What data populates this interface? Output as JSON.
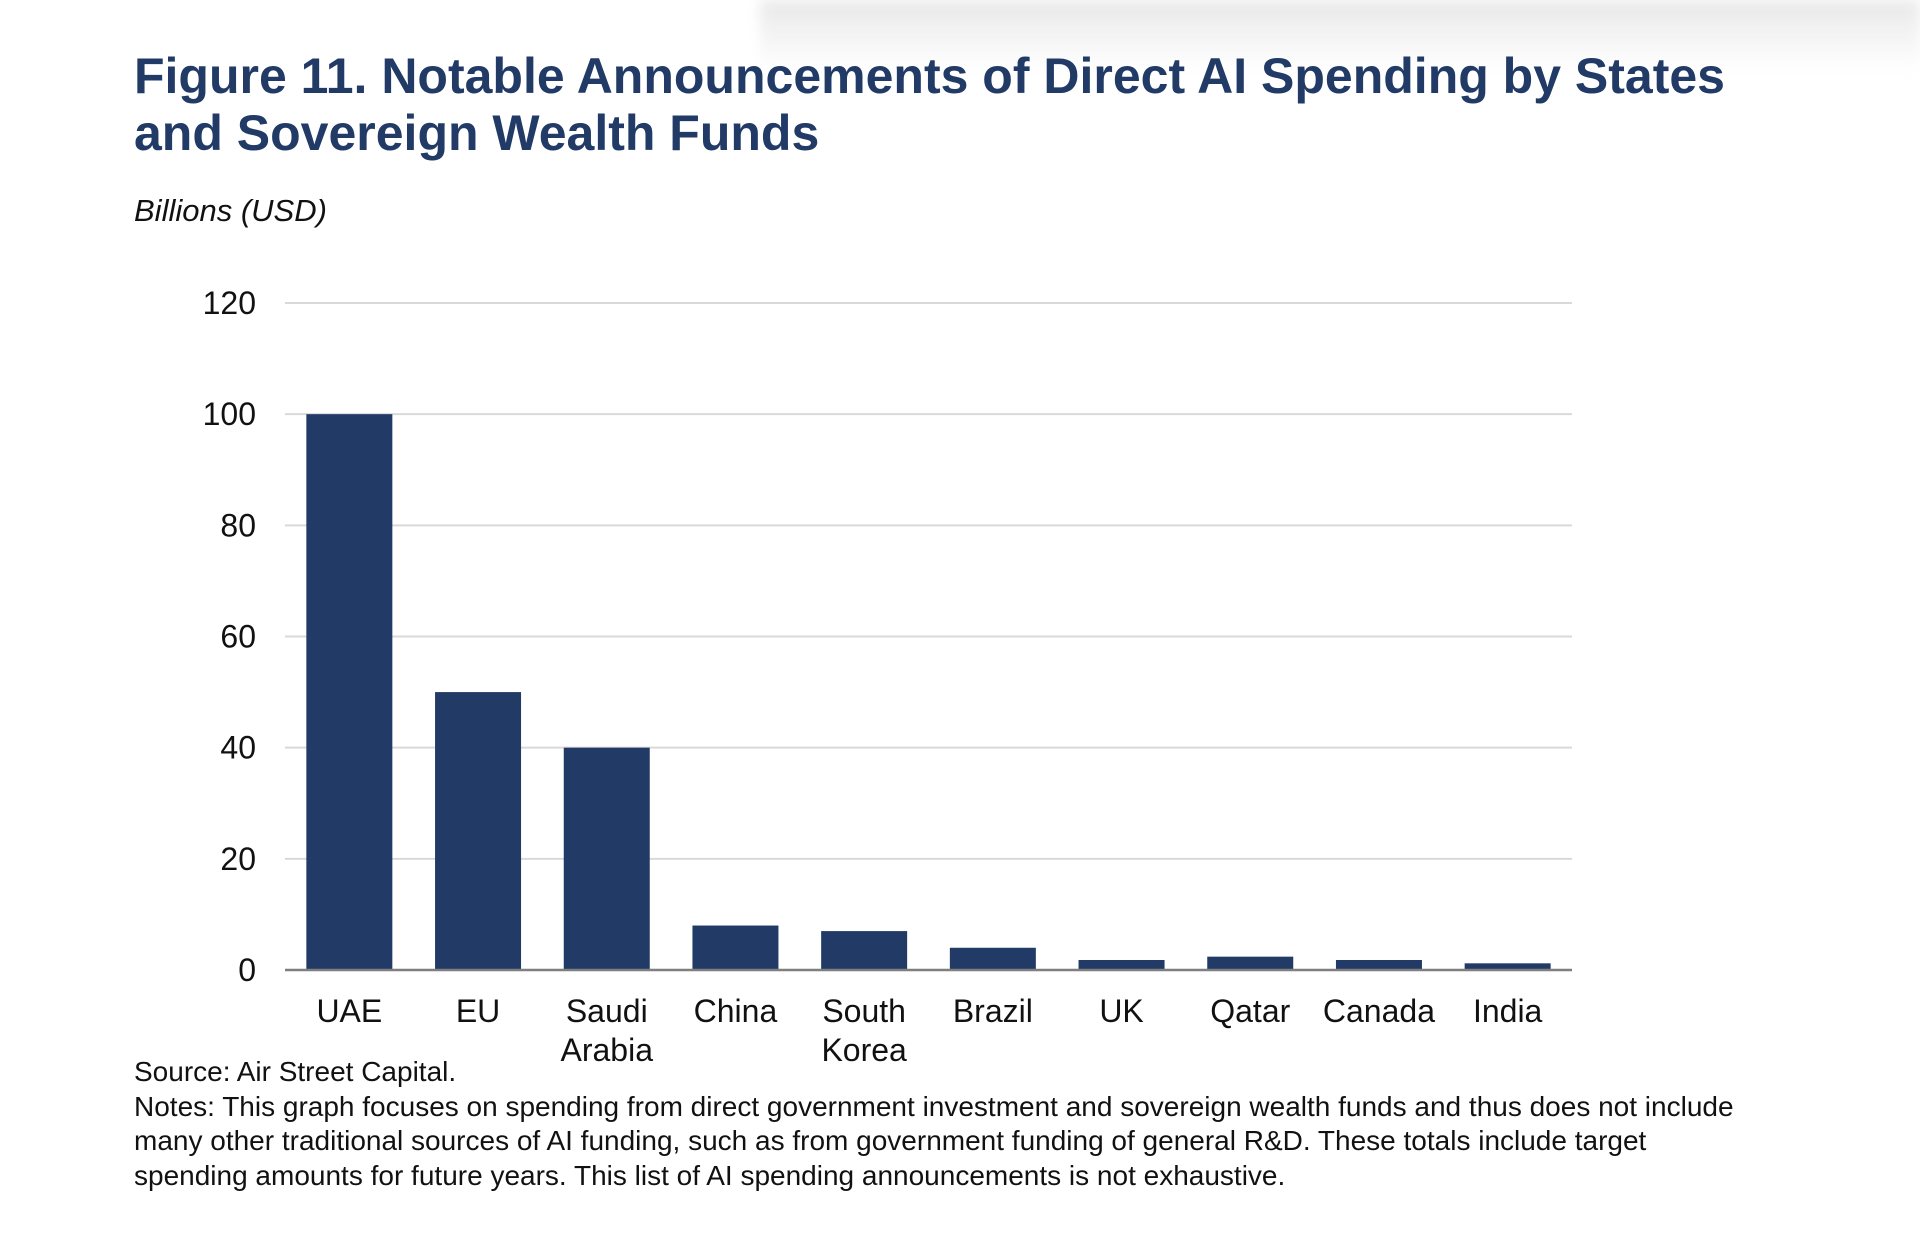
{
  "figure": {
    "title": "Figure 11. Notable Announcements of Direct AI Spending by States and Sovereign Wealth Funds",
    "unit_label": "Billions (USD)",
    "source": "Source: Air Street Capital.",
    "notes": "Notes: This graph focuses on spending from direct government investment and sovereign wealth funds and thus does not include many other traditional sources of AI funding, such as from government funding of general R&D. These totals include target spending amounts for future years. This list of AI spending announcements is not exhaustive."
  },
  "colors": {
    "bar": "#213a66",
    "title": "#213a66",
    "grid": "#d9d9d9",
    "axis": "#7f7f7f"
  },
  "chart_data": {
    "type": "bar",
    "title": "Figure 11. Notable Announcements of Direct AI Spending by States and Sovereign Wealth Funds",
    "xlabel": "",
    "ylabel": "Billions (USD)",
    "ylim": [
      0,
      120
    ],
    "yticks": [
      0,
      20,
      40,
      60,
      80,
      100,
      120
    ],
    "categories": [
      [
        "UAE"
      ],
      [
        "EU"
      ],
      [
        "Saudi",
        "Arabia"
      ],
      [
        "China"
      ],
      [
        "South",
        "Korea"
      ],
      [
        "Brazil"
      ],
      [
        "UK"
      ],
      [
        "Qatar"
      ],
      [
        "Canada"
      ],
      [
        "India"
      ]
    ],
    "values": [
      100,
      50,
      40,
      8,
      7,
      4,
      1.8,
      2.4,
      1.8,
      1.2
    ],
    "grid": true
  }
}
